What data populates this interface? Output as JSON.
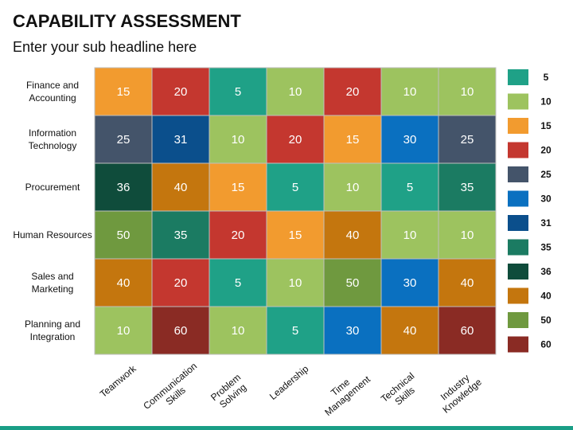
{
  "chart_data": {
    "type": "heatmap",
    "title": "CAPABILITY ASSESSMENT",
    "subtitle": "Enter your sub headline here",
    "rows": [
      "Finance and Accounting",
      "Information Technology",
      "Procurement",
      "Human Resources",
      "Sales and Marketing",
      "Planning and Integration"
    ],
    "columns": [
      "Teamwork",
      "Communication Skills",
      "Problem Solving",
      "Leadership",
      "Time Management",
      "Technical Skills",
      "Industry Knowledge"
    ],
    "values": [
      [
        15,
        20,
        5,
        10,
        20,
        10,
        10
      ],
      [
        25,
        31,
        10,
        20,
        15,
        30,
        25
      ],
      [
        36,
        40,
        15,
        5,
        10,
        5,
        35
      ],
      [
        50,
        35,
        20,
        15,
        40,
        10,
        10
      ],
      [
        40,
        20,
        5,
        10,
        50,
        30,
        40
      ],
      [
        10,
        60,
        10,
        5,
        30,
        40,
        60
      ]
    ],
    "scale": [
      {
        "value": 5,
        "color": "#1fa187"
      },
      {
        "value": 10,
        "color": "#9dc35f"
      },
      {
        "value": 15,
        "color": "#f29b2f"
      },
      {
        "value": 20,
        "color": "#c4372f"
      },
      {
        "value": 25,
        "color": "#44546a"
      },
      {
        "value": 30,
        "color": "#0a70c0"
      },
      {
        "value": 31,
        "color": "#0b4f8c"
      },
      {
        "value": 35,
        "color": "#1b7b62"
      },
      {
        "value": 36,
        "color": "#0f4c3b"
      },
      {
        "value": 40,
        "color": "#c4760e"
      },
      {
        "value": 50,
        "color": "#6f993f"
      },
      {
        "value": 60,
        "color": "#8a2b24"
      }
    ]
  }
}
